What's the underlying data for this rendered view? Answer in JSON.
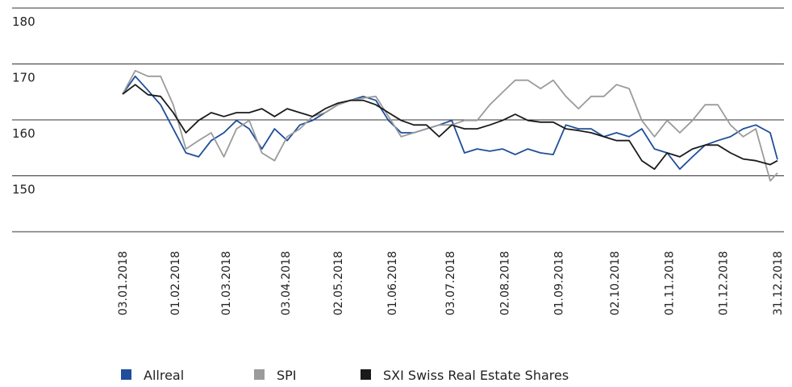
{
  "chart_data": {
    "type": "line",
    "x": [
      "03.01.2018",
      "10.01.2018",
      "17.01.2018",
      "24.01.2018",
      "31.01.2018",
      "07.02.2018",
      "14.02.2018",
      "21.02.2018",
      "28.02.2018",
      "07.03.2018",
      "14.03.2018",
      "21.03.2018",
      "28.03.2018",
      "04.04.2018",
      "11.04.2018",
      "18.04.2018",
      "25.04.2018",
      "02.05.2018",
      "09.05.2018",
      "16.05.2018",
      "23.05.2018",
      "30.05.2018",
      "06.06.2018",
      "13.06.2018",
      "20.06.2018",
      "27.06.2018",
      "04.07.2018",
      "11.07.2018",
      "18.07.2018",
      "25.07.2018",
      "01.08.2018",
      "08.08.2018",
      "15.08.2018",
      "22.08.2018",
      "29.08.2018",
      "05.09.2018",
      "12.09.2018",
      "19.09.2018",
      "26.09.2018",
      "03.10.2018",
      "10.10.2018",
      "17.10.2018",
      "24.10.2018",
      "31.10.2018",
      "07.11.2018",
      "14.11.2018",
      "21.11.2018",
      "28.11.2018",
      "05.12.2018",
      "12.12.2018",
      "19.12.2018",
      "27.12.2018",
      "31.12.2018"
    ],
    "series": [
      {
        "name": "Allreal",
        "color": "#1f4e9b",
        "values": [
          164.6,
          167.8,
          165.3,
          162.7,
          158.4,
          154.1,
          153.4,
          156.3,
          157.7,
          159.9,
          158.4,
          154.8,
          158.4,
          156.3,
          159.1,
          159.9,
          161.3,
          162.7,
          163.5,
          164.2,
          163.5,
          159.9,
          157.7,
          157.7,
          158.4,
          159.1,
          159.9,
          154.1,
          154.8,
          154.4,
          154.8,
          153.8,
          154.8,
          154.1,
          153.8,
          159.1,
          158.4,
          158.4,
          157.0,
          157.7,
          157.0,
          158.4,
          154.8,
          154.1,
          151.2,
          153.4,
          155.5,
          156.3,
          157.0,
          158.4,
          159.1,
          157.7,
          152.9
        ]
      },
      {
        "name": "SPI",
        "color": "#9b9b9b",
        "values": [
          164.6,
          168.8,
          167.8,
          167.8,
          162.7,
          154.8,
          156.3,
          157.7,
          153.4,
          158.4,
          159.9,
          154.1,
          152.7,
          157.0,
          158.4,
          160.6,
          161.3,
          162.7,
          163.5,
          163.9,
          164.2,
          160.6,
          157.0,
          157.7,
          158.4,
          159.1,
          159.1,
          159.9,
          159.9,
          162.7,
          164.9,
          167.1,
          167.1,
          165.6,
          167.1,
          164.2,
          162.0,
          164.2,
          164.2,
          166.3,
          165.6,
          159.9,
          157.0,
          159.9,
          157.7,
          159.9,
          162.7,
          162.7,
          159.1,
          157.0,
          158.4,
          149.1,
          150.5
        ]
      },
      {
        "name": "SXI Swiss Real Estate Shares",
        "color": "#1a1a1a",
        "values": [
          164.6,
          166.3,
          164.5,
          164.2,
          161.3,
          157.7,
          159.9,
          161.3,
          160.6,
          161.3,
          161.3,
          162.0,
          160.6,
          162.0,
          161.3,
          160.6,
          162.0,
          163.0,
          163.5,
          163.5,
          162.7,
          161.3,
          159.9,
          159.1,
          159.1,
          157.0,
          159.1,
          158.4,
          158.4,
          159.1,
          159.9,
          161.0,
          159.9,
          159.6,
          159.6,
          158.4,
          158.1,
          157.7,
          157.0,
          156.3,
          156.3,
          152.7,
          151.2,
          154.1,
          153.4,
          154.8,
          155.5,
          155.5,
          154.1,
          153.0,
          152.7,
          152.0,
          152.7
        ]
      }
    ],
    "xlim": [
      "03.01.2018",
      "31.12.2018"
    ],
    "xticks": [
      "03.01.2018",
      "01.02.2018",
      "01.03.2018",
      "03.04.2018",
      "02.05.2018",
      "01.06.2018",
      "03.07.2018",
      "02.08.2018",
      "01.09.2018",
      "02.10.2018",
      "01.11.2018",
      "01.12.2018",
      "31.12.2018"
    ],
    "ylim": [
      140,
      180
    ],
    "yticks": [
      150,
      160,
      170,
      180
    ],
    "grid": true,
    "legend": "bottom"
  }
}
